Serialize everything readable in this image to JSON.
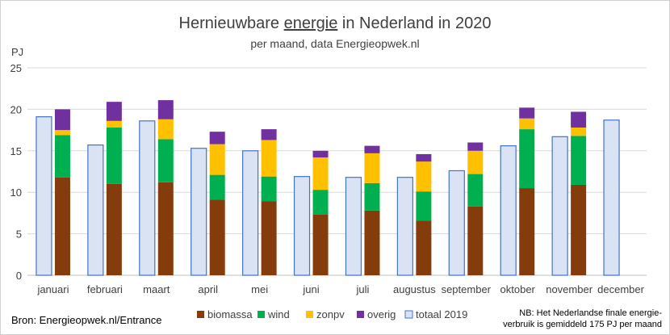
{
  "chart_data": {
    "type": "bar",
    "title_plain_1": "Hernieuwbare ",
    "title_underlined": "energie",
    "title_plain_2": " in Nederland in 2020",
    "subtitle": "per maand, data Energieopwek.nl",
    "ylabel": "PJ",
    "ylim": [
      0,
      25
    ],
    "yticks": [
      0,
      5,
      10,
      15,
      20,
      25
    ],
    "grid": true,
    "legend_position": "bottom",
    "categories": [
      "januari",
      "februari",
      "maart",
      "april",
      "mei",
      "juni",
      "juli",
      "augustus",
      "september",
      "oktober",
      "november",
      "december"
    ],
    "stacked_series": [
      {
        "name": "biomassa",
        "color": "#843C0C",
        "values": [
          11.8,
          11.0,
          11.2,
          9.1,
          8.9,
          7.3,
          7.8,
          6.6,
          8.3,
          10.5,
          10.9,
          null
        ]
      },
      {
        "name": "wind",
        "color": "#00B050",
        "values": [
          5.1,
          6.8,
          5.2,
          3.0,
          3.0,
          3.0,
          3.3,
          3.5,
          3.9,
          7.1,
          5.9,
          null
        ]
      },
      {
        "name": "zonpv",
        "color": "#FFC000",
        "values": [
          0.6,
          0.8,
          2.4,
          3.7,
          4.4,
          3.9,
          3.6,
          3.6,
          2.8,
          1.3,
          1.0,
          null
        ]
      },
      {
        "name": "overig",
        "color": "#7030A0",
        "values": [
          2.5,
          2.3,
          2.3,
          1.5,
          1.3,
          0.8,
          0.9,
          0.9,
          1.0,
          1.3,
          1.9,
          null
        ]
      }
    ],
    "reference_series": {
      "name": "totaal 2019",
      "fill": "#DAE3F3",
      "stroke": "#4472C4",
      "values": [
        19.1,
        15.7,
        18.6,
        15.3,
        15.0,
        11.9,
        11.8,
        11.8,
        12.6,
        15.6,
        16.7,
        18.7
      ]
    },
    "source": "Bron: Energieopwek.nl/Entrance",
    "note_line1": "NB: Het Nederlandse finale energie-",
    "note_line2": "verbruik is gemiddeld 175 PJ per maand"
  }
}
